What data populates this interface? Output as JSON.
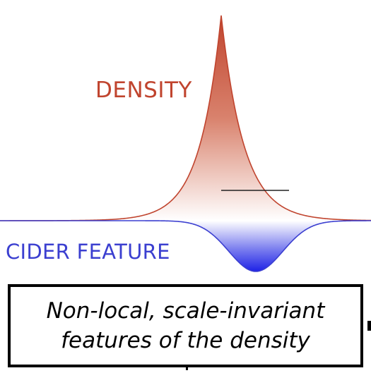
{
  "labels": {
    "density": "DENSITY",
    "feature": "CIDER FEATURE"
  },
  "caption": {
    "line1": "Non-local, scale-invariant",
    "line2": "features of the density"
  },
  "colors": {
    "density": "#c0442e",
    "feature": "#3b3fd0",
    "caption_border": "#000000"
  }
}
